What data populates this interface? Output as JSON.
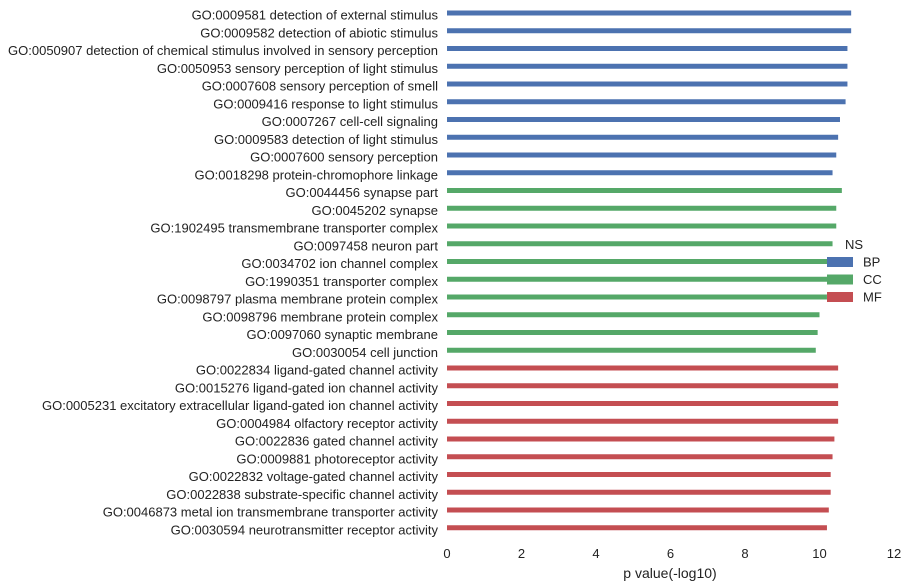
{
  "chart_data": {
    "type": "bar",
    "orientation": "horizontal",
    "xlabel": "p value(-log10)",
    "xlim": [
      0,
      12
    ],
    "xticks": [
      0,
      2,
      4,
      6,
      8,
      10,
      12
    ],
    "grid": false,
    "legend": {
      "title": "NS",
      "placement": "right",
      "entries": [
        {
          "name": "BP",
          "color": "#4c72b0"
        },
        {
          "name": "CC",
          "color": "#55a868"
        },
        {
          "name": "MF",
          "color": "#c44e52"
        }
      ]
    },
    "categories": [
      "GO:0009581 detection of external stimulus",
      "GO:0009582 detection of abiotic stimulus",
      "GO:0050907 detection of chemical stimulus involved in sensory perception",
      "GO:0050953 sensory perception of light stimulus",
      "GO:0007608 sensory perception of smell",
      "GO:0009416 response to light stimulus",
      "GO:0007267 cell-cell signaling",
      "GO:0009583 detection of light stimulus",
      "GO:0007600 sensory perception",
      "GO:0018298 protein-chromophore linkage",
      "GO:0044456 synapse part",
      "GO:0045202 synapse",
      "GO:1902495 transmembrane transporter complex",
      "GO:0097458 neuron part",
      "GO:0034702 ion channel complex",
      "GO:1990351 transporter complex",
      "GO:0098797 plasma membrane protein complex",
      "GO:0098796 membrane protein complex",
      "GO:0097060 synaptic membrane",
      "GO:0030054 cell junction",
      "GO:0022834 ligand-gated channel activity",
      "GO:0015276 ligand-gated ion channel activity",
      "GO:0005231 excitatory extracellular ligand-gated ion channel activity",
      "GO:0004984 olfactory receptor activity",
      "GO:0022836 gated channel activity",
      "GO:0009881 photoreceptor activity",
      "GO:0022832 voltage-gated channel activity",
      "GO:0022838 substrate-specific channel activity",
      "GO:0046873 metal ion transmembrane transporter activity",
      "GO:0030594 neurotransmitter receptor activity"
    ],
    "groups": [
      "BP",
      "BP",
      "BP",
      "BP",
      "BP",
      "BP",
      "BP",
      "BP",
      "BP",
      "BP",
      "CC",
      "CC",
      "CC",
      "CC",
      "CC",
      "CC",
      "CC",
      "CC",
      "CC",
      "CC",
      "MF",
      "MF",
      "MF",
      "MF",
      "MF",
      "MF",
      "MF",
      "MF",
      "MF",
      "MF"
    ],
    "values": [
      10.85,
      10.85,
      10.75,
      10.75,
      10.75,
      10.7,
      10.55,
      10.5,
      10.45,
      10.35,
      10.6,
      10.45,
      10.45,
      10.35,
      10.3,
      10.25,
      10.2,
      10.0,
      9.95,
      9.9,
      10.5,
      10.5,
      10.5,
      10.5,
      10.4,
      10.35,
      10.3,
      10.3,
      10.25,
      10.2
    ]
  }
}
